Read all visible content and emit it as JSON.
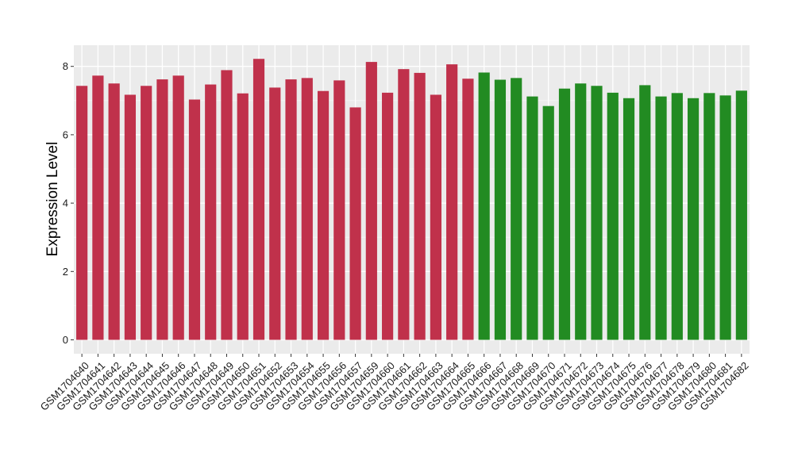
{
  "chart_data": {
    "type": "bar",
    "title": "",
    "xlabel": "",
    "ylabel": "Expression Level",
    "ylim": [
      0,
      8.6
    ],
    "yticks": [
      0,
      2,
      4,
      6,
      8
    ],
    "grid": true,
    "legend": "none",
    "panel_background": "#ebebeb",
    "colors": {
      "group1": "#c0314b",
      "group2": "#228b22"
    },
    "categories": [
      "GSM1704640",
      "GSM1704641",
      "GSM1704642",
      "GSM1704643",
      "GSM1704644",
      "GSM1704645",
      "GSM1704646",
      "GSM1704647",
      "GSM1704648",
      "GSM1704649",
      "GSM1704650",
      "GSM1704651",
      "GSM1704652",
      "GSM1704653",
      "GSM1704654",
      "GSM1704655",
      "GSM1704656",
      "GSM1704657",
      "GSM1704659",
      "GSM1704660",
      "GSM1704661",
      "GSM1704662",
      "GSM1704663",
      "GSM1704664",
      "GSM1704665",
      "GSM1704666",
      "GSM1704667",
      "GSM1704668",
      "GSM1704669",
      "GSM1704670",
      "GSM1704671",
      "GSM1704672",
      "GSM1704673",
      "GSM1704674",
      "GSM1704675",
      "GSM1704676",
      "GSM1704677",
      "GSM1704678",
      "GSM1704679",
      "GSM1704680",
      "GSM1704681",
      "GSM1704682"
    ],
    "values": [
      7.43,
      7.73,
      7.5,
      7.17,
      7.43,
      7.62,
      7.73,
      7.03,
      7.47,
      7.89,
      7.21,
      8.22,
      7.38,
      7.62,
      7.66,
      7.28,
      7.59,
      6.8,
      8.13,
      7.23,
      7.92,
      7.81,
      7.17,
      8.06,
      7.64,
      7.82,
      7.61,
      7.66,
      7.12,
      6.84,
      7.35,
      7.5,
      7.43,
      7.23,
      7.07,
      7.45,
      7.12,
      7.22,
      7.07,
      7.22,
      7.15,
      7.29
    ],
    "groups": [
      1,
      1,
      1,
      1,
      1,
      1,
      1,
      1,
      1,
      1,
      1,
      1,
      1,
      1,
      1,
      1,
      1,
      1,
      1,
      1,
      1,
      1,
      1,
      1,
      1,
      2,
      2,
      2,
      2,
      2,
      2,
      2,
      2,
      2,
      2,
      2,
      2,
      2,
      2,
      2,
      2,
      2
    ]
  }
}
